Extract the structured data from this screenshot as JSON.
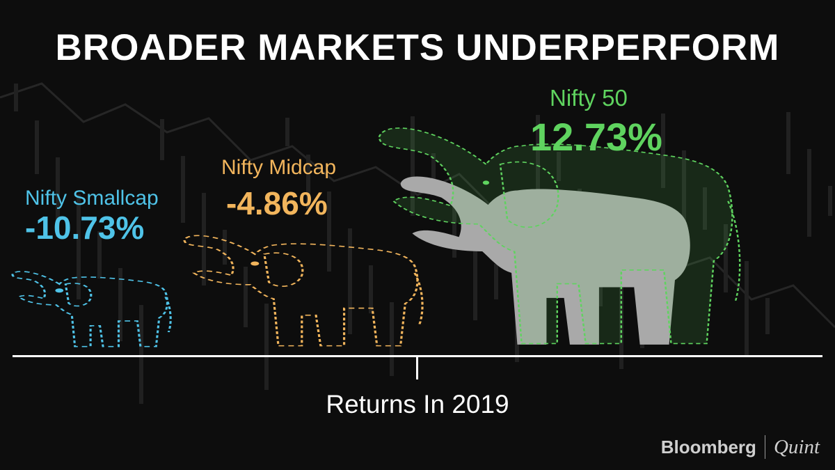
{
  "title": "BROADER MARKETS UNDERPERFORM",
  "chart_data": {
    "type": "bar",
    "title": "BROADER MARKETS UNDERPERFORM",
    "xlabel": "Returns In 2019",
    "ylabel": "",
    "categories": [
      "Nifty Smallcap",
      "Nifty Midcap",
      "Nifty 50"
    ],
    "values": [
      -10.73,
      -4.86,
      12.73
    ],
    "value_labels": [
      "-10.73%",
      "-4.86%",
      "12.73%"
    ],
    "unit": "%",
    "colors": [
      "#4fc3e8",
      "#f2b55c",
      "#5fd35f"
    ],
    "marks": "elephant pictograms sized by return",
    "grid": false
  },
  "brand": {
    "primary": "Bloomberg",
    "secondary": "Quint"
  },
  "colors": {
    "background": "#0d0d0d",
    "text": "#ffffff",
    "elephant_fill": "#a9a9a9"
  }
}
